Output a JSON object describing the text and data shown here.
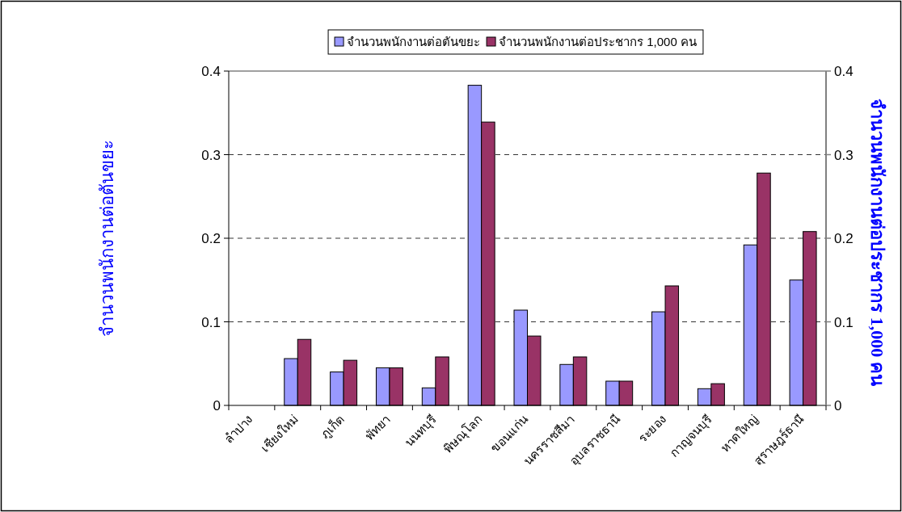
{
  "chart_data": {
    "type": "bar",
    "ylabel": "จำนวนพนักงานต่อตันขยะ",
    "y2label": "จำนวนพนักงานต่อประชากร 1,000 คน",
    "categories": [
      "ลำปาง",
      "เชียงใหม่",
      "ภูเก็ต",
      "พัทยา",
      "นนทบุรี",
      "พิษณุโลก",
      "ขอนแก่น",
      "นครราชสีมา",
      "อุบลราชธานี",
      "ระยอง",
      "กาญจนบุรี",
      "หาดใหญ่",
      "สุราษฎร์ธานี"
    ],
    "series": [
      {
        "name": "จำนวนพนักงานต่อตันขยะ",
        "color": "#9999ff",
        "values": [
          0,
          0.056,
          0.04,
          0.045,
          0.021,
          0.383,
          0.114,
          0.049,
          0.029,
          0.112,
          0.02,
          0.192,
          0.15
        ]
      },
      {
        "name": "จำนวนพนักงานต่อประชากร 1,000 คน",
        "color": "#993366",
        "values": [
          0,
          0.079,
          0.054,
          0.045,
          0.058,
          0.339,
          0.083,
          0.058,
          0.029,
          0.143,
          0.026,
          0.278,
          0.208
        ]
      }
    ],
    "ylim": [
      0,
      0.4
    ],
    "yticks": [
      0,
      0.1,
      0.2,
      0.3,
      0.4
    ],
    "y2lim": [
      0,
      0.4
    ],
    "y2ticks": [
      0,
      0.1,
      0.2,
      0.3,
      0.4
    ],
    "grid": "y",
    "legend": "top"
  }
}
